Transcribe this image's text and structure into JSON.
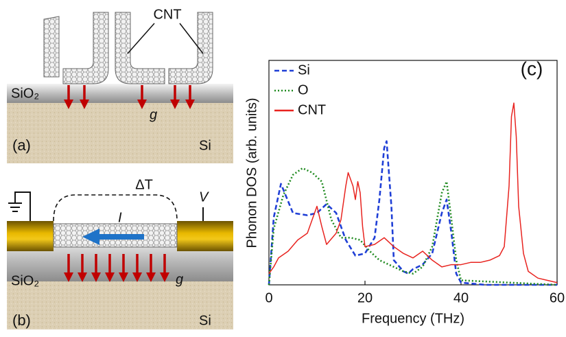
{
  "panel_a": {
    "label": "(a)",
    "cnt_label": "CNT",
    "oxide": "SiO₂",
    "substrate": "Si",
    "conductance": "g"
  },
  "panel_b": {
    "label": "(b)",
    "temperature_difference": "ΔT",
    "current": "I",
    "voltage": "V",
    "oxide": "SiO₂",
    "substrate": "Si",
    "conductance": "g"
  },
  "chart_data": {
    "type": "line",
    "panel_label": "(c)",
    "x_label": "Frequency (THz)",
    "y_label": "Phonon DOS (arb. units)",
    "xlim": [
      0,
      60
    ],
    "xticks": [
      0,
      20,
      40,
      60
    ],
    "ylim": [
      0,
      1
    ],
    "legend": "upper left",
    "series": [
      {
        "name": "Si",
        "color": "#1f3fd6",
        "style": "dashed",
        "x": [
          0,
          1,
          2.5,
          5,
          8,
          10,
          12,
          14,
          16,
          18,
          20,
          22,
          23,
          24,
          24.5,
          25.5,
          26,
          28,
          29,
          30,
          32,
          34,
          36,
          37,
          38,
          39,
          40,
          45,
          60
        ],
        "values": [
          0,
          0.3,
          0.45,
          0.32,
          0.31,
          0.32,
          0.36,
          0.32,
          0.2,
          0.13,
          0.14,
          0.21,
          0.38,
          0.61,
          0.64,
          0.35,
          0.11,
          0.06,
          0.05,
          0.07,
          0.09,
          0.14,
          0.32,
          0.38,
          0.23,
          0.05,
          0.01,
          0,
          0
        ]
      },
      {
        "name": "O",
        "color": "#1f8a1f",
        "style": "dotted",
        "x": [
          0,
          1,
          3,
          5,
          7,
          9,
          11,
          13,
          15,
          17,
          19,
          21,
          23,
          25,
          28,
          30,
          32,
          34,
          36,
          37,
          38,
          39,
          40,
          60
        ],
        "values": [
          0,
          0.25,
          0.4,
          0.49,
          0.52,
          0.5,
          0.46,
          0.29,
          0.21,
          0.21,
          0.2,
          0.15,
          0.11,
          0.09,
          0.06,
          0.05,
          0.08,
          0.17,
          0.41,
          0.46,
          0.29,
          0.11,
          0.02,
          0
        ]
      },
      {
        "name": "CNT",
        "color": "#e8231f",
        "style": "solid",
        "x": [
          0,
          1,
          2,
          4,
          6,
          8,
          9,
          10,
          11,
          12,
          14,
          15,
          16,
          16.5,
          17.5,
          18,
          18.5,
          19,
          19.5,
          20,
          22,
          24,
          26,
          28,
          30,
          32,
          34,
          36,
          38,
          40,
          42,
          44,
          46,
          48,
          49,
          50,
          50.5,
          51,
          51.5,
          52,
          53,
          54,
          56,
          58,
          60
        ],
        "values": [
          0.05,
          0.08,
          0.12,
          0.15,
          0.2,
          0.23,
          0.29,
          0.35,
          0.26,
          0.18,
          0.23,
          0.29,
          0.44,
          0.5,
          0.44,
          0.38,
          0.46,
          0.41,
          0.26,
          0.17,
          0.18,
          0.21,
          0.17,
          0.14,
          0.12,
          0.15,
          0.11,
          0.08,
          0.09,
          0.09,
          0.1,
          0.1,
          0.11,
          0.13,
          0.17,
          0.44,
          0.75,
          0.81,
          0.66,
          0.35,
          0.14,
          0.06,
          0.03,
          0.02,
          0.01
        ]
      }
    ]
  }
}
